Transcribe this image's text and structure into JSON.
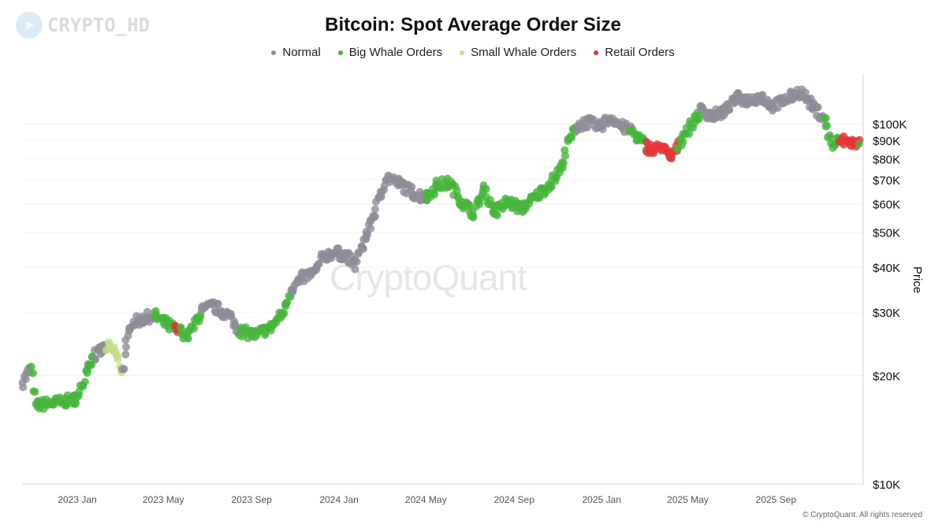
{
  "watermark": {
    "text": "CRYPTO_HD",
    "icon": "telegram-icon"
  },
  "chart_data": {
    "type": "scatter",
    "title": "Bitcoin: Spot Average Order Size",
    "ylabel": "Price",
    "xlabel": "",
    "yscale": "log",
    "ylim": [
      10000,
      140000
    ],
    "xlim": [
      "2022-10-14",
      "2025-12-28"
    ],
    "grid": true,
    "legend_position": "top-center",
    "legend": [
      {
        "key": "normal",
        "label": "Normal",
        "color": "#8e8c97"
      },
      {
        "key": "big",
        "label": "Big Whale Orders",
        "color": "#47b53c"
      },
      {
        "key": "small",
        "label": "Small Whale Orders",
        "color": "#c3df86"
      },
      {
        "key": "retail",
        "label": "Retail Orders",
        "color": "#e23636"
      }
    ],
    "y_ticks": [
      {
        "value": 10000,
        "label": "$10K"
      },
      {
        "value": 20000,
        "label": "$20K"
      },
      {
        "value": 30000,
        "label": "$30K"
      },
      {
        "value": 40000,
        "label": "$40K"
      },
      {
        "value": 50000,
        "label": "$50K"
      },
      {
        "value": 60000,
        "label": "$60K"
      },
      {
        "value": 70000,
        "label": "$70K"
      },
      {
        "value": 80000,
        "label": "$80K"
      },
      {
        "value": 90000,
        "label": "$90K"
      },
      {
        "value": 100000,
        "label": "$100K"
      }
    ],
    "x_ticks": [
      {
        "date": "2023-01-01",
        "label": "2023 Jan"
      },
      {
        "date": "2023-05-01",
        "label": "2023 May"
      },
      {
        "date": "2023-09-01",
        "label": "2023 Sep"
      },
      {
        "date": "2024-01-01",
        "label": "2024 Jan"
      },
      {
        "date": "2024-05-01",
        "label": "2024 May"
      },
      {
        "date": "2024-09-01",
        "label": "2024 Sep"
      },
      {
        "date": "2025-01-01",
        "label": "2025 Jan"
      },
      {
        "date": "2025-05-01",
        "label": "2025 May"
      },
      {
        "date": "2025-09-01",
        "label": "2025 Sep"
      }
    ],
    "points": [
      [
        "2022-10-16",
        19200,
        "normal"
      ],
      [
        "2022-10-29",
        20900,
        "big"
      ],
      [
        "2022-11-04",
        16500,
        "big"
      ],
      [
        "2022-11-20",
        16700,
        "big"
      ],
      [
        "2022-12-12",
        16900,
        "big"
      ],
      [
        "2023-01-03",
        17300,
        "big"
      ],
      [
        "2023-01-14",
        21200,
        "big"
      ],
      [
        "2023-01-25",
        22800,
        "normal"
      ],
      [
        "2023-02-11",
        24000,
        "small"
      ],
      [
        "2023-02-22",
        23400,
        "small"
      ],
      [
        "2023-03-05",
        20600,
        "normal"
      ],
      [
        "2023-03-16",
        27900,
        "normal"
      ],
      [
        "2023-04-01",
        28600,
        "normal"
      ],
      [
        "2023-04-18",
        29400,
        "big"
      ],
      [
        "2023-05-04",
        27900,
        "big"
      ],
      [
        "2023-05-17",
        26800,
        "retail"
      ],
      [
        "2023-05-24",
        26500,
        "big"
      ],
      [
        "2023-06-06",
        25900,
        "big"
      ],
      [
        "2023-06-23",
        30100,
        "normal"
      ],
      [
        "2023-07-09",
        31200,
        "normal"
      ],
      [
        "2023-07-31",
        29400,
        "normal"
      ],
      [
        "2023-08-16",
        26600,
        "big"
      ],
      [
        "2023-09-07",
        25900,
        "big"
      ],
      [
        "2023-09-29",
        27300,
        "big"
      ],
      [
        "2023-10-16",
        30100,
        "big"
      ],
      [
        "2023-10-27",
        35000,
        "normal"
      ],
      [
        "2023-11-12",
        37400,
        "normal"
      ],
      [
        "2023-11-29",
        38800,
        "normal"
      ],
      [
        "2023-12-10",
        42900,
        "normal"
      ],
      [
        "2023-12-26",
        43900,
        "normal"
      ],
      [
        "2024-01-12",
        42900,
        "normal"
      ],
      [
        "2024-01-23",
        40500,
        "normal"
      ],
      [
        "2024-02-03",
        46300,
        "normal"
      ],
      [
        "2024-02-14",
        52500,
        "normal"
      ],
      [
        "2024-02-25",
        61000,
        "normal"
      ],
      [
        "2024-03-07",
        71000,
        "normal"
      ],
      [
        "2024-03-29",
        67500,
        "normal"
      ],
      [
        "2024-04-14",
        64000,
        "normal"
      ],
      [
        "2024-05-01",
        62500,
        "big"
      ],
      [
        "2024-05-17",
        67500,
        "big"
      ],
      [
        "2024-06-03",
        68500,
        "big"
      ],
      [
        "2024-06-19",
        61000,
        "big"
      ],
      [
        "2024-07-06",
        56600,
        "big"
      ],
      [
        "2024-07-22",
        65800,
        "big"
      ],
      [
        "2024-08-05",
        56600,
        "big"
      ],
      [
        "2024-08-24",
        61000,
        "big"
      ],
      [
        "2024-09-10",
        58000,
        "big"
      ],
      [
        "2024-10-02",
        63000,
        "big"
      ],
      [
        "2024-10-24",
        69000,
        "big"
      ],
      [
        "2024-11-06",
        76000,
        "big"
      ],
      [
        "2024-11-15",
        89000,
        "big"
      ],
      [
        "2024-11-26",
        98000,
        "normal"
      ],
      [
        "2024-12-12",
        101000,
        "normal"
      ],
      [
        "2024-12-29",
        98000,
        "normal"
      ],
      [
        "2025-01-14",
        104000,
        "normal"
      ],
      [
        "2025-01-30",
        98000,
        "normal"
      ],
      [
        "2025-02-10",
        96000,
        "big"
      ],
      [
        "2025-02-21",
        91000,
        "big"
      ],
      [
        "2025-03-04",
        87000,
        "retail"
      ],
      [
        "2025-03-15",
        84000,
        "retail"
      ],
      [
        "2025-03-26",
        87000,
        "retail"
      ],
      [
        "2025-04-06",
        80000,
        "retail"
      ],
      [
        "2025-04-17",
        87000,
        "big"
      ],
      [
        "2025-04-30",
        96000,
        "big"
      ],
      [
        "2025-05-20",
        109000,
        "normal"
      ],
      [
        "2025-06-06",
        105000,
        "normal"
      ],
      [
        "2025-06-22",
        109000,
        "normal"
      ],
      [
        "2025-07-09",
        118000,
        "normal"
      ],
      [
        "2025-07-25",
        116000,
        "normal"
      ],
      [
        "2025-08-11",
        119000,
        "normal"
      ],
      [
        "2025-08-27",
        112000,
        "normal"
      ],
      [
        "2025-09-13",
        116000,
        "normal"
      ],
      [
        "2025-10-05",
        123000,
        "normal"
      ],
      [
        "2025-10-21",
        112000,
        "normal"
      ],
      [
        "2025-11-07",
        104000,
        "big"
      ],
      [
        "2025-11-18",
        87000,
        "big"
      ],
      [
        "2025-11-29",
        90000,
        "retail"
      ],
      [
        "2025-12-10",
        89000,
        "retail"
      ],
      [
        "2025-12-26",
        88000,
        "big"
      ]
    ]
  },
  "center_watermark": "CryptoQuant",
  "copyright": "© CryptoQuant. All rights reserved"
}
